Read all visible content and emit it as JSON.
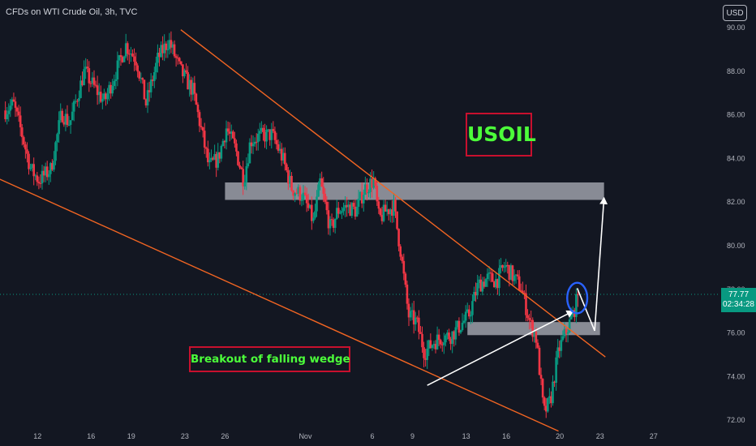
{
  "header": {
    "title": "CFDs on WTI Crude Oil, 3h, TVC",
    "currency": "USD"
  },
  "annotations": {
    "main_label": "USOIL",
    "caption": "Breakout of falling wedge"
  },
  "price_tag": {
    "price": "77.77",
    "countdown": "02:34:28"
  },
  "colors": {
    "background": "#131722",
    "bull": "#089981",
    "bear": "#f23645",
    "trendline": "#f26522",
    "label_border": "#c8102e",
    "label_text": "#4cff3a",
    "arrow": "#ffffff",
    "zone": "#d1d4dc",
    "circle": "#2962ff",
    "axis_text": "#b2b5be"
  },
  "chart_data": {
    "type": "candlestick",
    "title": "CFDs on WTI Crude Oil, 3h, TVC",
    "ylim": [
      71.6,
      90.4
    ],
    "grid": false,
    "y_ticks": [
      "90.00",
      "88.00",
      "86.00",
      "84.00",
      "82.00",
      "80.00",
      "78.00",
      "76.00",
      "74.00",
      "72.00"
    ],
    "x_ticks": [
      {
        "label": "12",
        "t": 12
      },
      {
        "label": "16",
        "t": 16
      },
      {
        "label": "19",
        "t": 19
      },
      {
        "label": "23",
        "t": 23
      },
      {
        "label": "26",
        "t": 26
      },
      {
        "label": "Nov",
        "t": 32
      },
      {
        "label": "6",
        "t": 37
      },
      {
        "label": "9",
        "t": 40
      },
      {
        "label": "13",
        "t": 44
      },
      {
        "label": "16",
        "t": 47
      },
      {
        "label": "20",
        "t": 51
      },
      {
        "label": "23",
        "t": 54
      },
      {
        "label": "27",
        "t": 58
      }
    ],
    "anchors": [
      [
        9.6,
        86.2
      ],
      [
        10.2,
        86.5
      ],
      [
        10.8,
        85.2
      ],
      [
        11.5,
        83.5
      ],
      [
        12.1,
        83.0
      ],
      [
        13.0,
        83.5
      ],
      [
        13.8,
        86.1
      ],
      [
        14.4,
        85.6
      ],
      [
        15.5,
        88.0
      ],
      [
        16.2,
        87.3
      ],
      [
        17.0,
        86.6
      ],
      [
        18.0,
        88.2
      ],
      [
        18.6,
        89.2
      ],
      [
        19.4,
        88.5
      ],
      [
        20.1,
        86.5
      ],
      [
        21.0,
        88.6
      ],
      [
        21.8,
        89.4
      ],
      [
        22.7,
        88.0
      ],
      [
        23.6,
        87.1
      ],
      [
        24.2,
        85.4
      ],
      [
        24.8,
        83.6
      ],
      [
        25.5,
        84.0
      ],
      [
        26.1,
        85.4
      ],
      [
        26.8,
        84.4
      ],
      [
        27.4,
        83.0
      ],
      [
        27.9,
        84.8
      ],
      [
        28.5,
        85.0
      ],
      [
        29.5,
        85.1
      ],
      [
        30.3,
        84.0
      ],
      [
        31.0,
        82.6
      ],
      [
        31.8,
        82.3
      ],
      [
        32.6,
        81.1
      ],
      [
        33.1,
        82.9
      ],
      [
        33.9,
        80.7
      ],
      [
        34.4,
        81.6
      ],
      [
        35.1,
        81.8
      ],
      [
        35.8,
        81.6
      ],
      [
        36.4,
        82.6
      ],
      [
        37.1,
        83.0
      ],
      [
        37.5,
        81.2
      ],
      [
        38.0,
        81.6
      ],
      [
        38.6,
        81.8
      ],
      [
        39.1,
        79.8
      ],
      [
        39.7,
        76.8
      ],
      [
        40.3,
        76.5
      ],
      [
        40.9,
        75.1
      ],
      [
        41.6,
        75.6
      ],
      [
        42.2,
        75.8
      ],
      [
        42.9,
        75.9
      ],
      [
        43.5,
        76.3
      ],
      [
        44.2,
        76.8
      ],
      [
        44.9,
        78.2
      ],
      [
        45.6,
        78.5
      ],
      [
        46.3,
        78.4
      ],
      [
        46.9,
        79.1
      ],
      [
        47.6,
        78.5
      ],
      [
        48.1,
        78.1
      ],
      [
        48.8,
        76.4
      ],
      [
        49.2,
        75.9
      ],
      [
        49.5,
        74.2
      ],
      [
        49.8,
        72.3
      ],
      [
        50.3,
        72.9
      ],
      [
        50.9,
        75.2
      ],
      [
        51.5,
        76.1
      ],
      [
        52.0,
        76.9
      ],
      [
        52.4,
        77.77
      ]
    ],
    "zones": [
      {
        "t0": 26.0,
        "t1": 54.3,
        "low": 82.1,
        "high": 82.9
      },
      {
        "t0": 44.1,
        "t1": 54.0,
        "low": 75.9,
        "high": 76.5
      }
    ],
    "lines": [
      {
        "role": "upper-trendline",
        "color": "#f26522",
        "t0": 22.7,
        "p0": 89.9,
        "t1": 54.4,
        "p1": 74.9
      },
      {
        "role": "lower-trendline",
        "color": "#f26522",
        "t0": 9.0,
        "p0": 83.1,
        "t1": 50.9,
        "p1": 71.5
      },
      {
        "role": "breakout-arrow",
        "color": "#ffffff",
        "t0": 41.1,
        "p0": 73.6,
        "t1": 52.0,
        "p1": 77.0,
        "arrow": true
      },
      {
        "role": "projection-down",
        "color": "#ffffff",
        "t0": 52.3,
        "p0": 78.05,
        "t1": 53.6,
        "p1": 76.1,
        "arrow": false
      },
      {
        "role": "projection-up",
        "color": "#ffffff",
        "t0": 53.6,
        "p0": 76.1,
        "t1": 54.3,
        "p1": 82.2,
        "arrow": true
      }
    ],
    "highlight_circle": {
      "t": 52.3,
      "p": 77.6,
      "rx_t": 0.75,
      "ry_p": 0.7,
      "color": "#2962ff"
    },
    "current_price": 77.77
  }
}
